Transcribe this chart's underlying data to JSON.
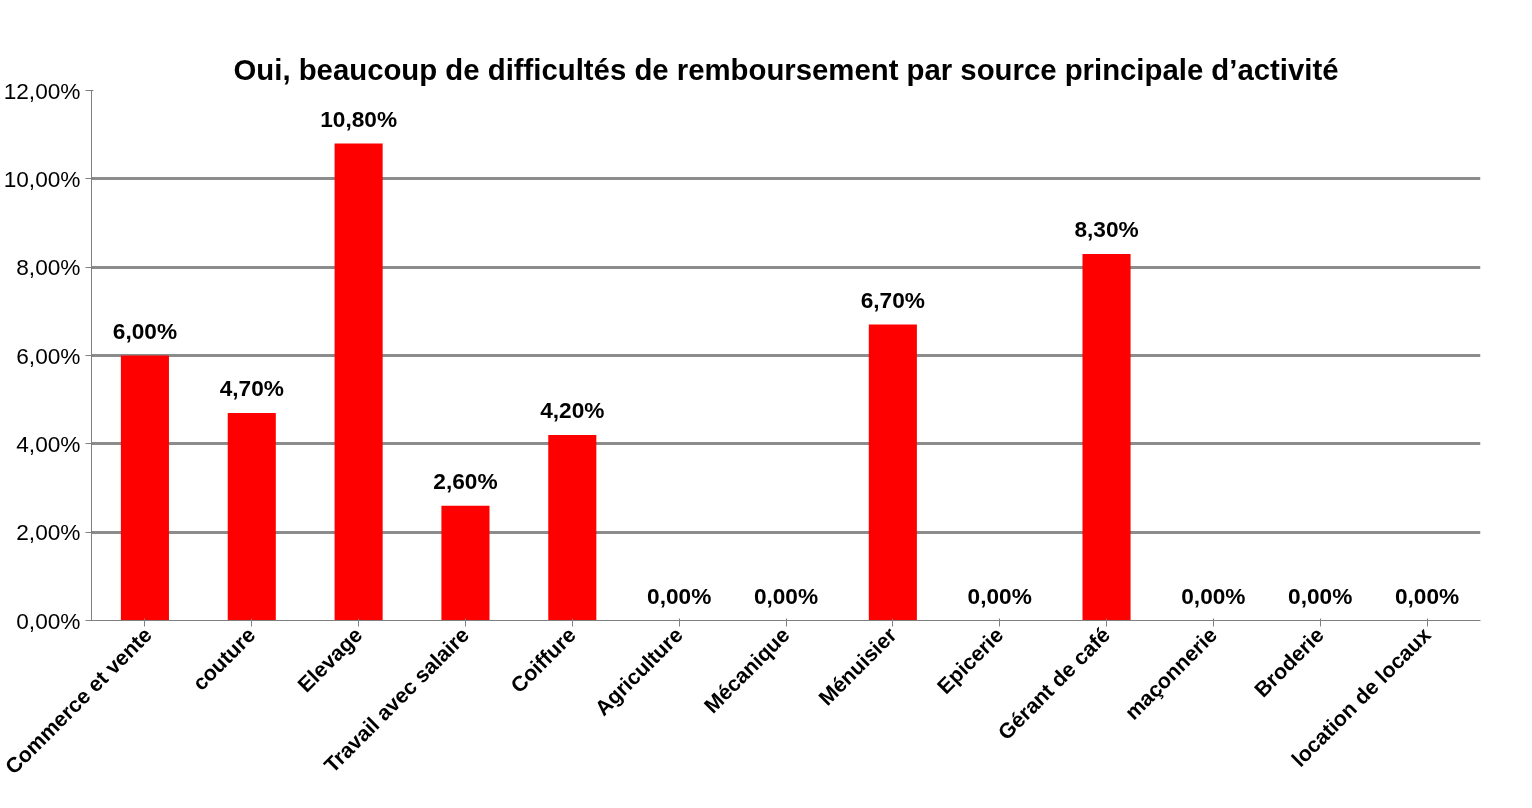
{
  "chart_data": {
    "type": "bar",
    "title": "Oui, beaucoup de difficultés de remboursement par source principale d’activité",
    "categories": [
      "Commerce et vente",
      "couture",
      "Elevage",
      "Travail avec salaire",
      "Coiffure",
      "Agriculture",
      "Mécanique",
      "Ménuisier",
      "Epicerie",
      "Gérant de café",
      "maçonnerie",
      "Broderie",
      "location de locaux"
    ],
    "values": [
      6.0,
      4.7,
      10.8,
      2.6,
      4.2,
      0,
      0,
      6.7,
      0,
      8.3,
      0,
      0,
      0
    ],
    "value_labels": [
      "6,00%",
      "4,70%",
      "10,80%",
      "2,60%",
      "4,20%",
      "0,00%",
      "0,00%",
      "6,70%",
      "0,00%",
      "8,30%",
      "0,00%",
      "0,00%",
      "0,00%"
    ],
    "color": "#ff0000",
    "ylim": [
      0,
      12
    ],
    "yticks": [
      {
        "value": 0,
        "label": "0,00%"
      },
      {
        "value": 2,
        "label": "2,00%"
      },
      {
        "value": 4,
        "label": "4,00%"
      },
      {
        "value": 6,
        "label": "6,00%"
      },
      {
        "value": 8,
        "label": "8,00%"
      },
      {
        "value": 10,
        "label": "10,00%"
      },
      {
        "value": 12,
        "label": "12,00%"
      }
    ],
    "grid": "y"
  }
}
